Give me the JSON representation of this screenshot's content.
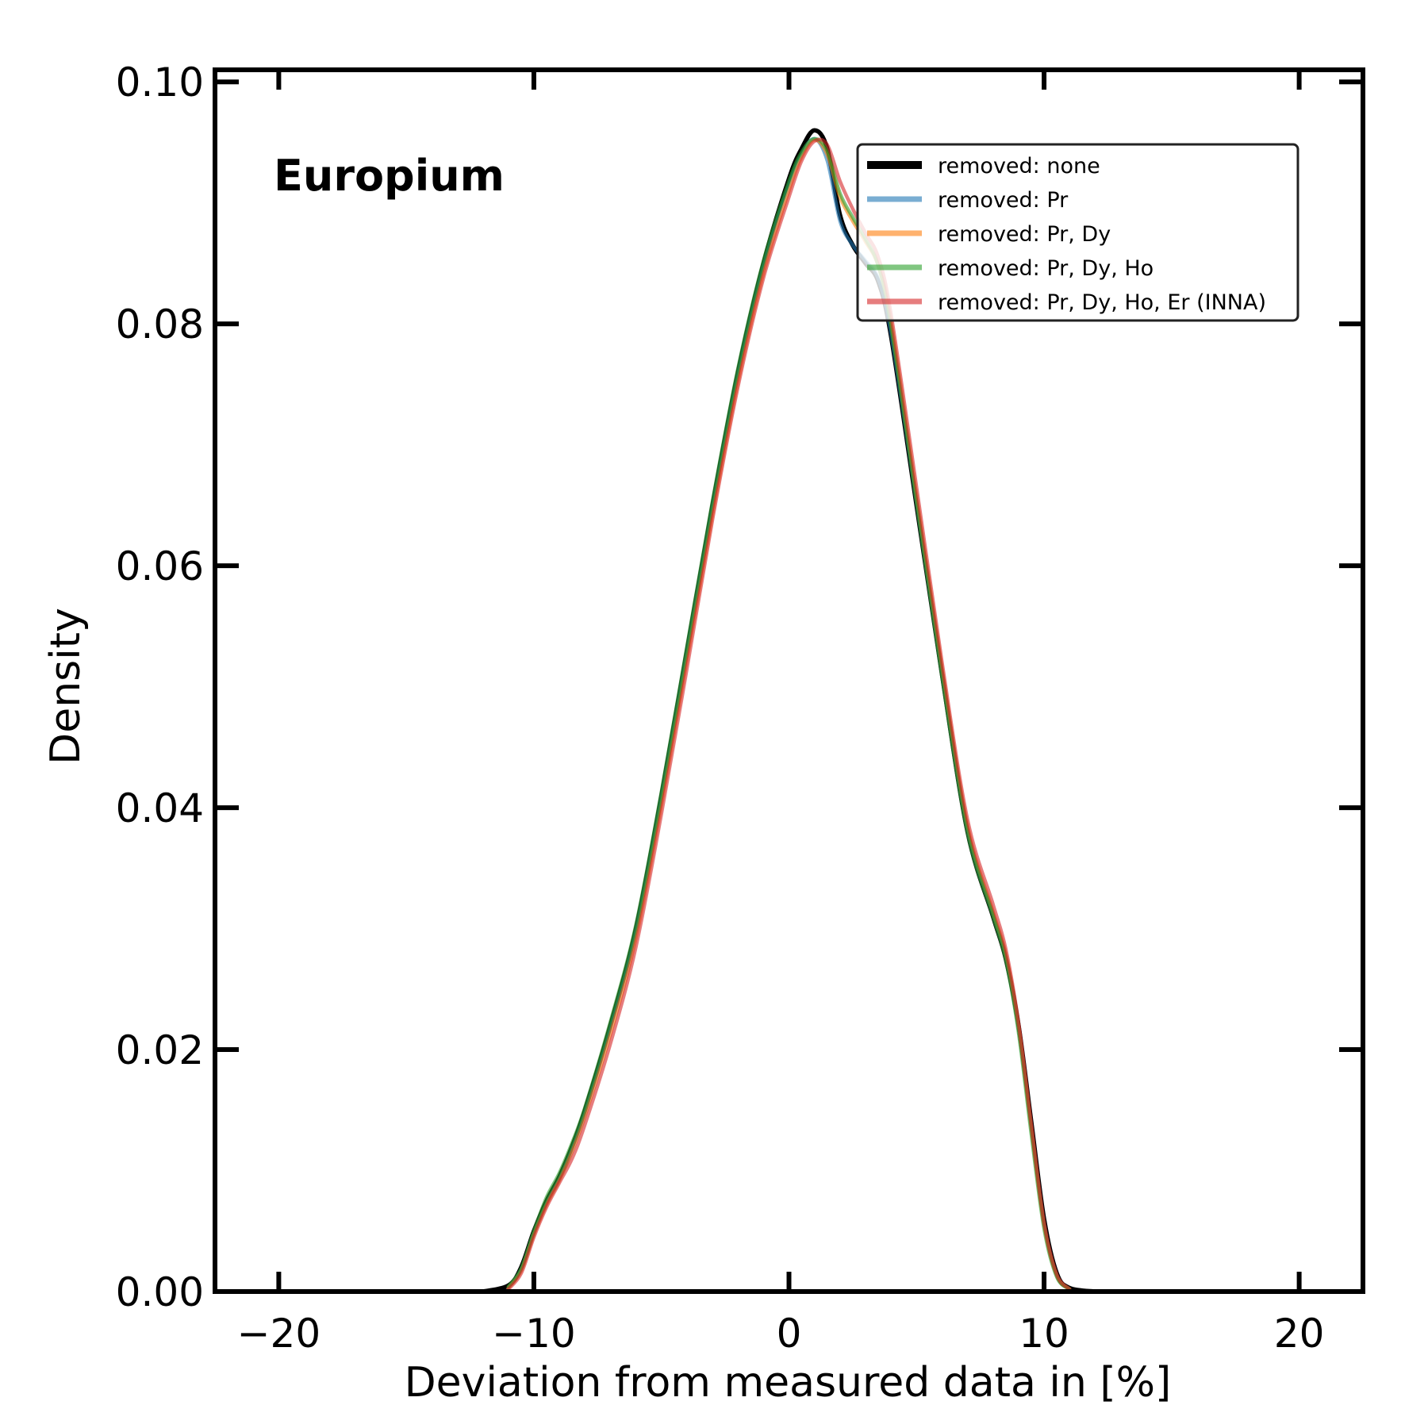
{
  "chart_data": {
    "type": "line",
    "annotation": "Europium",
    "xlabel": "Deviation from measured data in [%]",
    "ylabel": "Density",
    "xlim": [
      -22.5,
      22.5
    ],
    "ylim": [
      0,
      0.101
    ],
    "xticks": [
      -20,
      -10,
      0,
      10,
      20
    ],
    "xtick_labels": [
      "−20",
      "−10",
      "0",
      "10",
      "20"
    ],
    "yticks": [
      0,
      0.02,
      0.04,
      0.06,
      0.08,
      0.1
    ],
    "ytick_labels": [
      "0.00",
      "0.02",
      "0.04",
      "0.06",
      "0.08",
      "0.10"
    ],
    "grid": false,
    "legend_position": "top-right",
    "series": [
      {
        "name": "removed: none",
        "color": "#000000",
        "x": [
          -12,
          -11,
          -10.5,
          -10,
          -9.5,
          -9,
          -8.5,
          -8,
          -7,
          -6,
          -5,
          -4,
          -3,
          -2,
          -1,
          0,
          0.5,
          1,
          1.5,
          2,
          2.5,
          3,
          3.5,
          4,
          5,
          6,
          7,
          8,
          8.5,
          9,
          9.5,
          10,
          10.5,
          11,
          12
        ],
        "y": [
          0,
          0.0005,
          0.002,
          0.005,
          0.0075,
          0.0095,
          0.012,
          0.015,
          0.022,
          0.03,
          0.041,
          0.053,
          0.065,
          0.076,
          0.085,
          0.092,
          0.0945,
          0.096,
          0.0945,
          0.089,
          0.0865,
          0.085,
          0.0835,
          0.079,
          0.065,
          0.051,
          0.038,
          0.031,
          0.0275,
          0.022,
          0.014,
          0.006,
          0.0015,
          0.0003,
          0
        ]
      },
      {
        "name": "removed: Pr",
        "color": "#1f77b4",
        "x": [
          -11,
          -10.5,
          -10,
          -9.5,
          -9,
          -8.5,
          -8,
          -7,
          -6,
          -5,
          -4,
          -3,
          -2,
          -1,
          0,
          0.5,
          1,
          1.5,
          2,
          2.5,
          3,
          3.5,
          4,
          5,
          6,
          7,
          8,
          8.5,
          9,
          9.5,
          10,
          10.5,
          11
        ],
        "y": [
          0.0003,
          0.0018,
          0.0048,
          0.0073,
          0.0093,
          0.0118,
          0.0148,
          0.0218,
          0.0298,
          0.0408,
          0.0528,
          0.0648,
          0.0758,
          0.0848,
          0.0915,
          0.094,
          0.0953,
          0.0935,
          0.0885,
          0.0865,
          0.0852,
          0.0837,
          0.0792,
          0.0653,
          0.0512,
          0.0382,
          0.0312,
          0.0277,
          0.0218,
          0.0135,
          0.0056,
          0.0013,
          0.0002
        ]
      },
      {
        "name": "removed: Pr, Dy",
        "color": "#ff7f0e",
        "x": [
          -11,
          -10.5,
          -10,
          -9.5,
          -9,
          -8.5,
          -8,
          -7,
          -6,
          -5,
          -4,
          -3,
          -2,
          -1,
          0,
          0.5,
          1,
          1.5,
          2,
          2.5,
          3,
          3.5,
          4,
          5,
          6,
          7,
          8,
          8.5,
          9,
          9.5,
          10,
          10.5,
          11
        ],
        "y": [
          0.0003,
          0.0017,
          0.0047,
          0.0072,
          0.0092,
          0.0116,
          0.0145,
          0.0213,
          0.0292,
          0.0402,
          0.0522,
          0.0642,
          0.0752,
          0.0842,
          0.091,
          0.0938,
          0.0952,
          0.094,
          0.0905,
          0.0885,
          0.0868,
          0.0848,
          0.0802,
          0.0658,
          0.0515,
          0.0385,
          0.0314,
          0.0279,
          0.0219,
          0.0135,
          0.0055,
          0.0013,
          0.0002
        ]
      },
      {
        "name": "removed: Pr, Dy, Ho",
        "color": "#2ca02c",
        "x": [
          -11,
          -10.5,
          -10,
          -9.5,
          -9,
          -8.5,
          -8,
          -7,
          -6,
          -5,
          -4,
          -3,
          -2,
          -1,
          0,
          0.5,
          1,
          1.5,
          2,
          2.5,
          3,
          3.5,
          4,
          5,
          6,
          7,
          8,
          8.5,
          9,
          9.5,
          10,
          10.5,
          11
        ],
        "y": [
          0.0004,
          0.0019,
          0.005,
          0.0078,
          0.0098,
          0.0123,
          0.0152,
          0.0223,
          0.0303,
          0.0413,
          0.0533,
          0.0653,
          0.0763,
          0.0852,
          0.0918,
          0.0942,
          0.0953,
          0.0943,
          0.0908,
          0.0888,
          0.087,
          0.0848,
          0.0798,
          0.0652,
          0.0508,
          0.0379,
          0.031,
          0.0274,
          0.0214,
          0.013,
          0.0052,
          0.0012,
          0.0002
        ]
      },
      {
        "name": "removed: Pr, Dy, Ho, Er (INNA)",
        "color": "#d62728",
        "x": [
          -11,
          -10.5,
          -10,
          -9.5,
          -9,
          -8.5,
          -8,
          -7,
          -6,
          -5,
          -4,
          -3,
          -2,
          -1,
          0,
          0.5,
          1,
          1.5,
          2,
          2.5,
          3,
          3.5,
          4,
          5,
          6,
          7,
          8,
          8.5,
          9,
          9.5,
          10,
          10.5,
          11
        ],
        "y": [
          0.0002,
          0.0015,
          0.0045,
          0.007,
          0.009,
          0.011,
          0.0138,
          0.0205,
          0.0285,
          0.0395,
          0.0515,
          0.0638,
          0.0748,
          0.0838,
          0.0905,
          0.0935,
          0.0951,
          0.0948,
          0.0918,
          0.0895,
          0.0875,
          0.0855,
          0.0808,
          0.0665,
          0.052,
          0.039,
          0.032,
          0.0283,
          0.0222,
          0.0138,
          0.0057,
          0.0014,
          0.0002
        ]
      }
    ]
  }
}
